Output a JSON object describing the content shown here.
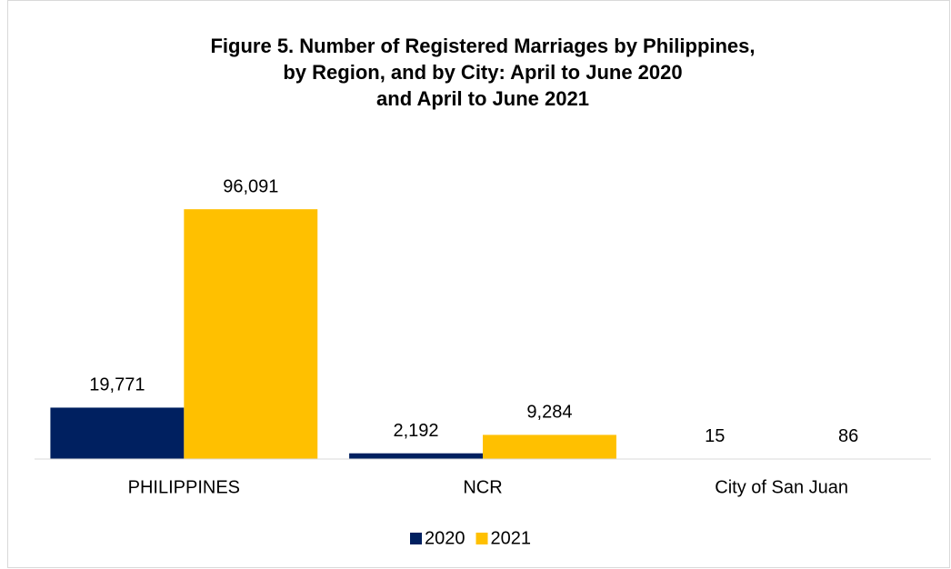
{
  "chart_data": {
    "type": "bar",
    "title": [
      "Figure 5. Number of Registered Marriages by Philippines,",
      "by Region, and by City: April to June 2020",
      "and April to June 2021"
    ],
    "categories": [
      "PHILIPPINES",
      "NCR",
      "City of San Juan"
    ],
    "series": [
      {
        "name": "2020",
        "color": "#002060",
        "values": [
          19771,
          2192,
          15
        ],
        "value_labels": [
          "19,771",
          "2,192",
          "15"
        ]
      },
      {
        "name": "2021",
        "color": "#ffc000",
        "values": [
          96091,
          9284,
          86
        ],
        "value_labels": [
          "96,091",
          "9,284",
          "86"
        ]
      }
    ],
    "ylim": [
      0,
      100000
    ],
    "legend": "bottom"
  }
}
